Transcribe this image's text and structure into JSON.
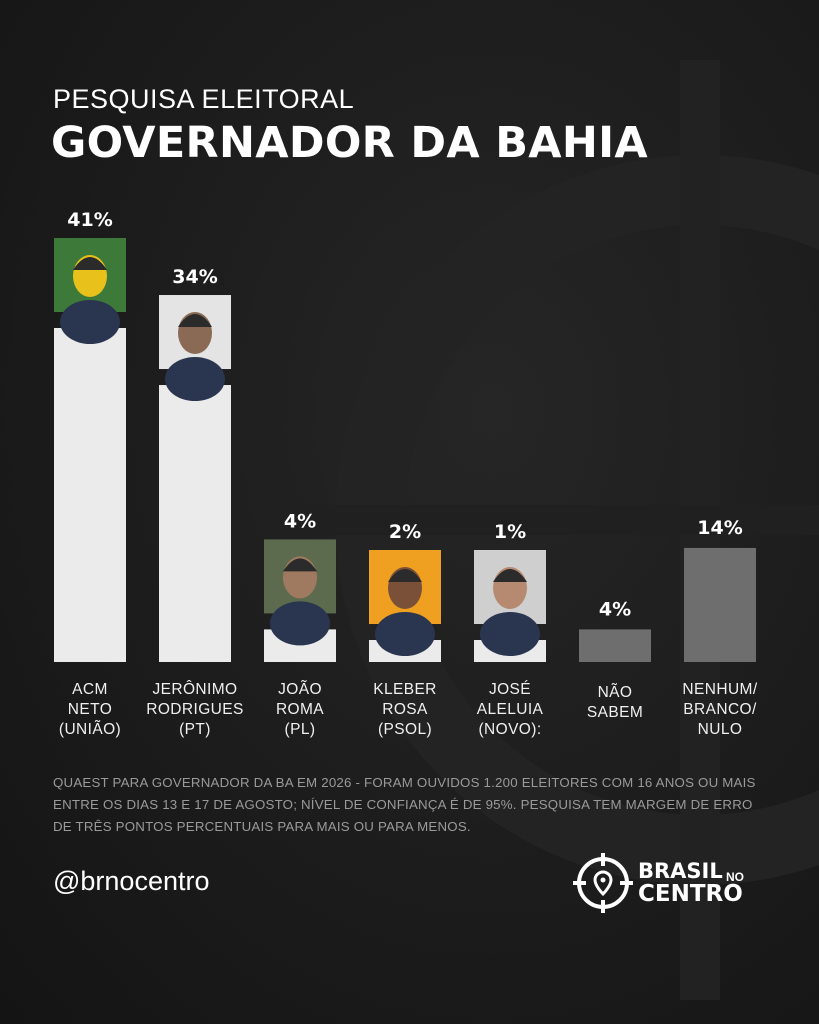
{
  "header": {
    "subtitle": "PESQUISA ELEITORAL",
    "title": "GOVERNADOR DA BAHIA"
  },
  "chart_data": {
    "type": "bar",
    "title": "GOVERNADOR DA BAHIA",
    "subtitle": "PESQUISA ELEITORAL",
    "ylim": [
      0,
      41
    ],
    "unit": "%",
    "categories": [
      {
        "lines": [
          "ACM",
          "NETO",
          "(UNIÃO)"
        ],
        "value": 41,
        "label": "41%",
        "photo": "candidate-photo",
        "photo_bg": "#3d7a3a",
        "accent": "#e8c21a",
        "tone": "light"
      },
      {
        "lines": [
          "JERÔNIMO",
          "RODRIGUES",
          "(PT)"
        ],
        "value": 34,
        "label": "34%",
        "photo": "candidate-photo",
        "photo_bg": "#e4e4e4",
        "accent": "#8a6a55",
        "tone": "light"
      },
      {
        "lines": [
          "JOÃO",
          "ROMA",
          "(PL)"
        ],
        "value": 4,
        "label": "4%",
        "photo": "candidate-photo",
        "photo_bg": "#5c6b4e",
        "accent": "#a07a60",
        "tone": "light"
      },
      {
        "lines": [
          "KLEBER",
          "ROSA",
          "(PSOL)"
        ],
        "value": 2,
        "label": "2%",
        "photo": "candidate-photo",
        "photo_bg": "#f0a020",
        "accent": "#7a5038",
        "tone": "light"
      },
      {
        "lines": [
          "JOSÉ",
          "ALELUIA",
          "(NOVO):"
        ],
        "value": 1,
        "label": "1%",
        "photo": "candidate-photo",
        "photo_bg": "#cfcfcf",
        "accent": "#b58a70",
        "tone": "light"
      },
      {
        "lines": [
          "NÃO",
          "SABEM"
        ],
        "value": 4,
        "label": "4%",
        "photo": null,
        "tone": "dark"
      },
      {
        "lines": [
          "NENHUM/",
          "BRANCO/",
          "NULO"
        ],
        "value": 14,
        "label": "14%",
        "photo": null,
        "tone": "dark"
      }
    ]
  },
  "colors": {
    "bar_light": "#ebebeb",
    "bar_dark": "#6e6e6e",
    "background": "#1c1c1c"
  },
  "footnote": "QUAEST PARA GOVERNADOR DA BA EM 2026 - FORAM OUVIDOS 1.200 ELEITORES COM 16 ANOS OU MAIS ENTRE OS DIAS 13 E 17 DE AGOSTO; NÍVEL DE CONFIANÇA É DE 95%. PESQUISA TEM MARGEM DE ERRO DE TRÊS PONTOS PERCENTUAIS PARA MAIS OU PARA MENOS.",
  "footer": {
    "handle": "@brnocentro",
    "logo_brand": "BRASIL",
    "logo_no": "NO",
    "logo_centro": "CENTRO",
    "logo_icon": "crosshair-map-pin-icon"
  }
}
